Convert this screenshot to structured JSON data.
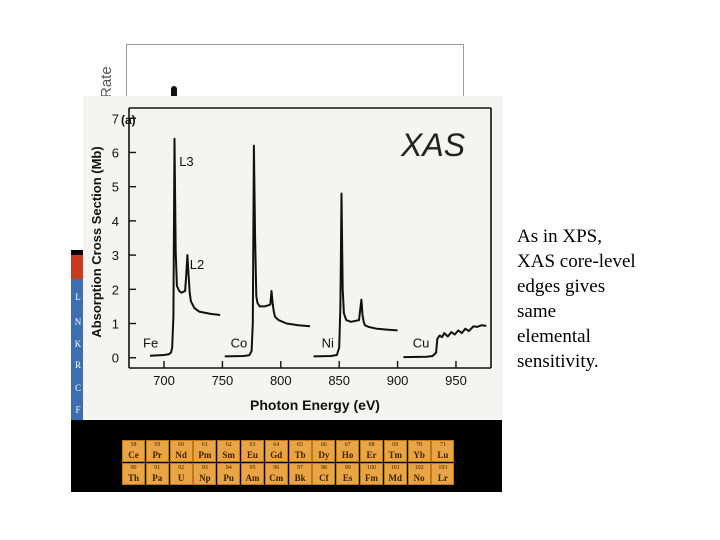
{
  "background_panel": {
    "axis_label": "Rate"
  },
  "periodic_table": {
    "strip_letters": [
      "L",
      "N",
      "K",
      "R",
      "C",
      "F"
    ],
    "lanthanides": [
      {
        "number": "58",
        "symbol": "Ce"
      },
      {
        "number": "59",
        "symbol": "Pr"
      },
      {
        "number": "60",
        "symbol": "Nd"
      },
      {
        "number": "61",
        "symbol": "Pm"
      },
      {
        "number": "62",
        "symbol": "Sm"
      },
      {
        "number": "63",
        "symbol": "Eu"
      },
      {
        "number": "64",
        "symbol": "Gd"
      },
      {
        "number": "65",
        "symbol": "Tb"
      },
      {
        "number": "66",
        "symbol": "Dy"
      },
      {
        "number": "67",
        "symbol": "Ho"
      },
      {
        "number": "68",
        "symbol": "Er"
      },
      {
        "number": "69",
        "symbol": "Tm"
      },
      {
        "number": "70",
        "symbol": "Yb"
      },
      {
        "number": "71",
        "symbol": "Lu"
      }
    ],
    "actinides": [
      {
        "number": "90",
        "symbol": "Th"
      },
      {
        "number": "91",
        "symbol": "Pa"
      },
      {
        "number": "92",
        "symbol": "U"
      },
      {
        "number": "93",
        "symbol": "Np"
      },
      {
        "number": "94",
        "symbol": "Pu"
      },
      {
        "number": "95",
        "symbol": "Am"
      },
      {
        "number": "96",
        "symbol": "Cm"
      },
      {
        "number": "97",
        "symbol": "Bk"
      },
      {
        "number": "98",
        "symbol": "Cf"
      },
      {
        "number": "99",
        "symbol": "Es"
      },
      {
        "number": "100",
        "symbol": "Fm"
      },
      {
        "number": "101",
        "symbol": "Md"
      },
      {
        "number": "102",
        "symbol": "No"
      },
      {
        "number": "103",
        "symbol": "Lr"
      }
    ]
  },
  "chart_data": {
    "type": "line",
    "panel_label": "(a)",
    "title": "XAS",
    "xlabel": "Photon Energy (eV)",
    "ylabel": "Absorption Cross Section (Mb)",
    "xlim": [
      670,
      980
    ],
    "ylim": [
      -0.3,
      7.3
    ],
    "x_ticks": [
      700,
      750,
      800,
      850,
      900,
      950
    ],
    "y_ticks": [
      0,
      1,
      2,
      3,
      4,
      5,
      6,
      7
    ],
    "grid": false,
    "line_color": "#111111",
    "series": [
      {
        "name": "Fe",
        "x": [
          688,
          700,
          704,
          706,
          707,
          708,
          709,
          710,
          711,
          713,
          715,
          718,
          719,
          720,
          721,
          722,
          723,
          726,
          730,
          740,
          748
        ],
        "y": [
          0.06,
          0.08,
          0.1,
          0.15,
          0.3,
          1.2,
          6.4,
          3.1,
          2.1,
          1.95,
          1.9,
          1.95,
          2.4,
          3.0,
          2.4,
          1.9,
          1.65,
          1.45,
          1.35,
          1.28,
          1.25
        ]
      },
      {
        "name": "Co",
        "x": [
          752,
          768,
          773,
          775,
          776,
          777,
          778,
          779,
          780,
          782,
          786,
          791,
          792,
          793,
          794,
          795,
          798,
          805,
          815,
          825
        ],
        "y": [
          0.04,
          0.05,
          0.07,
          0.2,
          1.0,
          6.2,
          3.5,
          1.8,
          1.6,
          1.5,
          1.5,
          1.55,
          1.95,
          1.6,
          1.35,
          1.2,
          1.1,
          1.0,
          0.95,
          0.92
        ]
      },
      {
        "name": "Ni",
        "x": [
          828,
          843,
          848,
          850,
          851,
          852,
          853,
          854,
          856,
          860,
          867,
          869,
          870,
          871,
          872,
          875,
          882,
          892,
          900
        ],
        "y": [
          0.04,
          0.05,
          0.08,
          0.3,
          1.5,
          4.8,
          2.0,
          1.3,
          1.1,
          1.05,
          1.1,
          1.7,
          1.25,
          1.05,
          0.95,
          0.9,
          0.85,
          0.82,
          0.8
        ]
      },
      {
        "name": "Cu",
        "x": [
          905,
          925,
          930,
          933,
          934,
          936,
          938,
          940,
          943,
          946,
          949,
          952,
          955,
          958,
          961,
          965,
          968,
          972,
          976
        ],
        "y": [
          0.02,
          0.03,
          0.05,
          0.15,
          0.55,
          0.65,
          0.6,
          0.72,
          0.62,
          0.75,
          0.68,
          0.8,
          0.72,
          0.85,
          0.78,
          0.92,
          0.9,
          0.95,
          0.93
        ]
      }
    ],
    "annotations": [
      {
        "text": "L3",
        "x": 713,
        "y": 5.6
      },
      {
        "text": "L2",
        "x": 722,
        "y": 2.6
      },
      {
        "text": "Fe",
        "x": 682,
        "y": 0.3
      },
      {
        "text": "Co",
        "x": 757,
        "y": 0.3
      },
      {
        "text": "Ni",
        "x": 835,
        "y": 0.3
      },
      {
        "text": "Cu",
        "x": 913,
        "y": 0.3
      }
    ]
  },
  "caption": {
    "lines": [
      "As in XPS,",
      "XAS core-level",
      "edges gives",
      "same",
      "elemental",
      "sensitivity."
    ]
  }
}
